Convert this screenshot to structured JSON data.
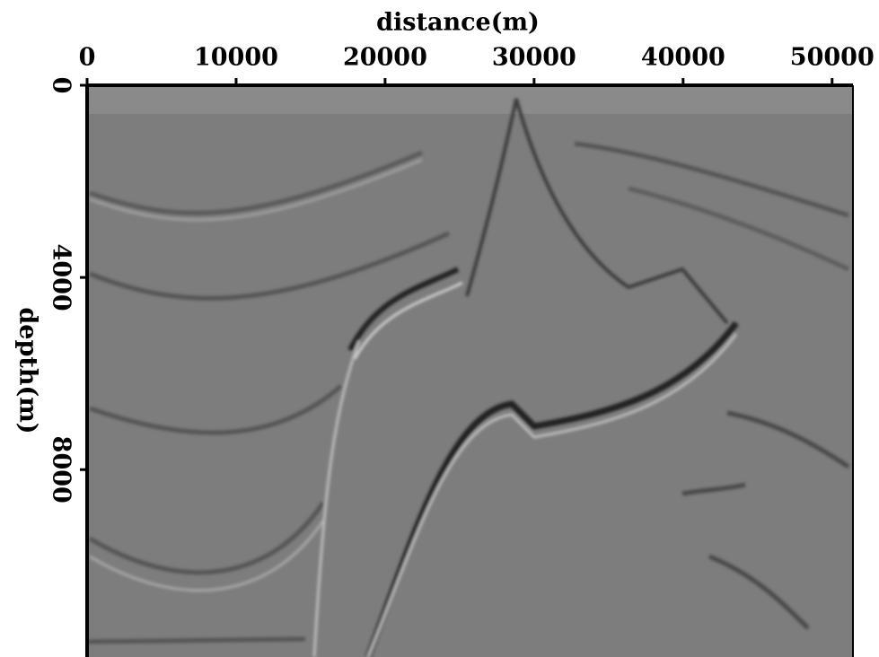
{
  "chart_data": {
    "type": "image",
    "title": "distance(m)",
    "x_label": "distance(m)",
    "y_label": "depth(m)",
    "xlim": [
      0,
      51400
    ],
    "xticks": [
      0,
      10000,
      20000,
      30000,
      40000,
      50000
    ],
    "ylim": [
      0,
      11900
    ],
    "yticks": [
      0,
      4000,
      8000
    ],
    "x_axis_position": "top",
    "y_inverted": true
  }
}
